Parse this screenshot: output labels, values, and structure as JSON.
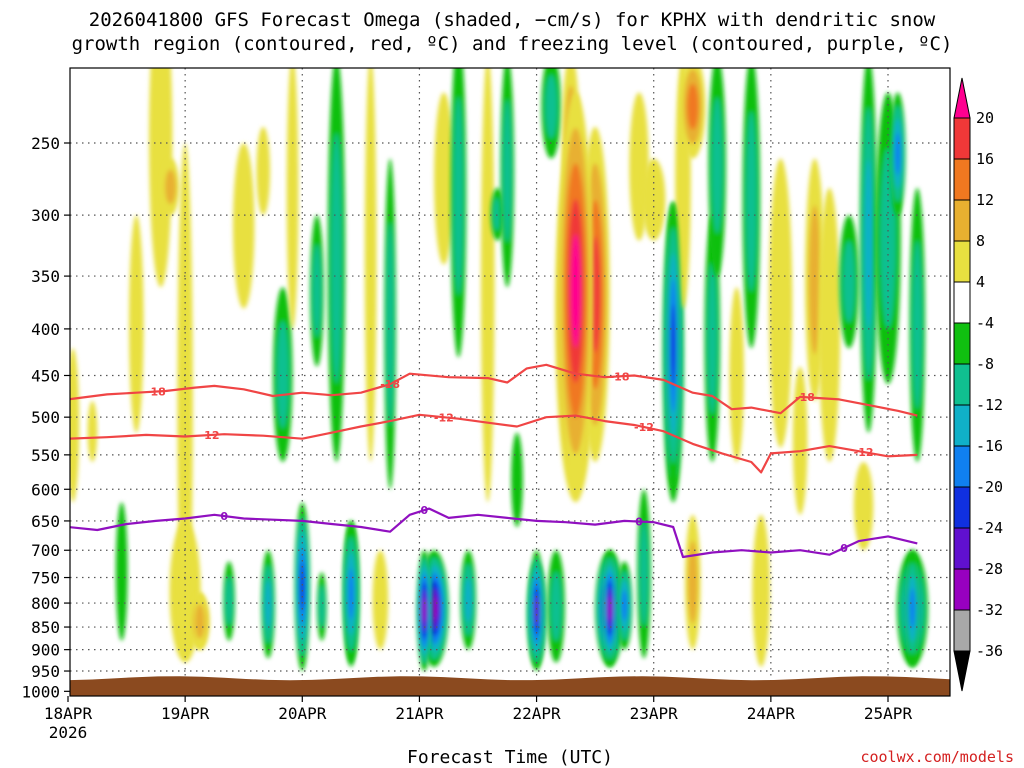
{
  "title": {
    "line1": "2026041800 GFS Forecast Omega (shaded, −cm/s) for KPHX with dendritic snow",
    "line2": "growth region (contoured, red, ºC) and freezing level (contoured, purple, ºC)"
  },
  "xlabel": "Forecast Time (UTC)",
  "credit": "coolwx.com/models",
  "colors": {
    "ground": "#8b4a1f",
    "dgz_contour": "#f04545",
    "freezing_contour": "#9010c0",
    "grid": "#555555"
  },
  "chart_data": {
    "type": "heatmap",
    "title": "2026041800 GFS Forecast Omega (shaded, −cm/s) for KPHX with dendritic snow growth region (contoured, red, ºC) and freezing level (contoured, purple, ºC)",
    "xlabel": "Forecast Time (UTC)",
    "ylabel": "",
    "x_unit": "forecast hour",
    "x_range": [
      0,
      174
    ],
    "y_unit": "hPa",
    "y_range": [
      1050,
      200
    ],
    "y_scale": "log-pressure",
    "x_ticks": [
      {
        "hour": 0,
        "label": "18APR",
        "sublabel": "2026"
      },
      {
        "hour": 24,
        "label": "19APR"
      },
      {
        "hour": 48,
        "label": "20APR"
      },
      {
        "hour": 72,
        "label": "21APR"
      },
      {
        "hour": 96,
        "label": "22APR"
      },
      {
        "hour": 120,
        "label": "23APR"
      },
      {
        "hour": 144,
        "label": "24APR"
      },
      {
        "hour": 168,
        "label": "25APR"
      }
    ],
    "y_ticks": [
      250,
      300,
      350,
      400,
      450,
      500,
      550,
      600,
      650,
      700,
      750,
      800,
      850,
      900,
      950,
      1000
    ],
    "colorbar": {
      "labels": [
        "20",
        "16",
        "12",
        "8",
        "4",
        "-4",
        "-8",
        "-12",
        "-16",
        "-20",
        "-24",
        "-28",
        "-32",
        "-36"
      ],
      "colors": [
        "#ff0090",
        "#f03838",
        "#f07820",
        "#e8b030",
        "#e8e040",
        "#ffffff",
        "#10c010",
        "#10c090",
        "#10b0c8",
        "#1080f0",
        "#1030e0",
        "#6010d0",
        "#9800c0",
        "#a8a8a8",
        "#000000"
      ]
    },
    "surface_pressure_hPa": 965,
    "dgz_contours": [
      {
        "label": "-18",
        "series": [
          {
            "hour": 0,
            "p": 478
          },
          {
            "hour": 4,
            "p": 475
          },
          {
            "hour": 8,
            "p": 472
          },
          {
            "hour": 14,
            "p": 470
          },
          {
            "hour": 20,
            "p": 468
          },
          {
            "hour": 26,
            "p": 464
          },
          {
            "hour": 30,
            "p": 462
          },
          {
            "hour": 36,
            "p": 466
          },
          {
            "hour": 42,
            "p": 474
          },
          {
            "hour": 48,
            "p": 470
          },
          {
            "hour": 54,
            "p": 473
          },
          {
            "hour": 60,
            "p": 470
          },
          {
            "hour": 66,
            "p": 460
          },
          {
            "hour": 70,
            "p": 448
          },
          {
            "hour": 78,
            "p": 452
          },
          {
            "hour": 86,
            "p": 453
          },
          {
            "hour": 90,
            "p": 458
          },
          {
            "hour": 94,
            "p": 442
          },
          {
            "hour": 98,
            "p": 438
          },
          {
            "hour": 104,
            "p": 448
          },
          {
            "hour": 110,
            "p": 452
          },
          {
            "hour": 116,
            "p": 450
          },
          {
            "hour": 122,
            "p": 455
          },
          {
            "hour": 128,
            "p": 470
          },
          {
            "hour": 132,
            "p": 474
          },
          {
            "hour": 136,
            "p": 490
          },
          {
            "hour": 140,
            "p": 488
          },
          {
            "hour": 146,
            "p": 495
          },
          {
            "hour": 150,
            "p": 475
          },
          {
            "hour": 158,
            "p": 478
          },
          {
            "hour": 164,
            "p": 485
          },
          {
            "hour": 170,
            "p": 492
          },
          {
            "hour": 174,
            "p": 498
          }
        ],
        "labels_at_hours": [
          18,
          66,
          113,
          151
        ]
      },
      {
        "label": "-12",
        "series": [
          {
            "hour": 0,
            "p": 528
          },
          {
            "hour": 8,
            "p": 526
          },
          {
            "hour": 16,
            "p": 523
          },
          {
            "hour": 24,
            "p": 525
          },
          {
            "hour": 32,
            "p": 522
          },
          {
            "hour": 40,
            "p": 524
          },
          {
            "hour": 48,
            "p": 528
          },
          {
            "hour": 54,
            "p": 520
          },
          {
            "hour": 60,
            "p": 512
          },
          {
            "hour": 66,
            "p": 505
          },
          {
            "hour": 72,
            "p": 497
          },
          {
            "hour": 80,
            "p": 502
          },
          {
            "hour": 86,
            "p": 507
          },
          {
            "hour": 92,
            "p": 512
          },
          {
            "hour": 98,
            "p": 500
          },
          {
            "hour": 104,
            "p": 498
          },
          {
            "hour": 110,
            "p": 505
          },
          {
            "hour": 116,
            "p": 510
          },
          {
            "hour": 122,
            "p": 518
          },
          {
            "hour": 128,
            "p": 535
          },
          {
            "hour": 134,
            "p": 548
          },
          {
            "hour": 140,
            "p": 560
          },
          {
            "hour": 142,
            "p": 575
          },
          {
            "hour": 144,
            "p": 548
          },
          {
            "hour": 150,
            "p": 545
          },
          {
            "hour": 156,
            "p": 538
          },
          {
            "hour": 162,
            "p": 545
          },
          {
            "hour": 168,
            "p": 552
          },
          {
            "hour": 174,
            "p": 550
          }
        ],
        "labels_at_hours": [
          29,
          77,
          118,
          163
        ]
      }
    ],
    "freezing_contour": {
      "label": "0",
      "series": [
        {
          "hour": 0,
          "p": 660
        },
        {
          "hour": 6,
          "p": 665
        },
        {
          "hour": 12,
          "p": 655
        },
        {
          "hour": 18,
          "p": 650
        },
        {
          "hour": 24,
          "p": 646
        },
        {
          "hour": 30,
          "p": 640
        },
        {
          "hour": 36,
          "p": 646
        },
        {
          "hour": 42,
          "p": 648
        },
        {
          "hour": 48,
          "p": 650
        },
        {
          "hour": 54,
          "p": 655
        },
        {
          "hour": 60,
          "p": 660
        },
        {
          "hour": 66,
          "p": 668
        },
        {
          "hour": 70,
          "p": 640
        },
        {
          "hour": 74,
          "p": 630
        },
        {
          "hour": 78,
          "p": 645
        },
        {
          "hour": 84,
          "p": 640
        },
        {
          "hour": 90,
          "p": 645
        },
        {
          "hour": 96,
          "p": 650
        },
        {
          "hour": 102,
          "p": 652
        },
        {
          "hour": 108,
          "p": 656
        },
        {
          "hour": 114,
          "p": 650
        },
        {
          "hour": 120,
          "p": 652
        },
        {
          "hour": 124,
          "p": 660
        },
        {
          "hour": 126,
          "p": 712
        },
        {
          "hour": 132,
          "p": 704
        },
        {
          "hour": 138,
          "p": 700
        },
        {
          "hour": 144,
          "p": 704
        },
        {
          "hour": 150,
          "p": 700
        },
        {
          "hour": 156,
          "p": 708
        },
        {
          "hour": 162,
          "p": 684
        },
        {
          "hour": 168,
          "p": 676
        },
        {
          "hour": 174,
          "p": 688
        }
      ],
      "labels_at_hours": [
        32,
        73,
        117,
        159
      ]
    },
    "omega_features": [
      {
        "hour": 24,
        "p_top": 250,
        "p_bot": 920,
        "value": 4,
        "note": "weak ascent column"
      },
      {
        "hour": 27,
        "p_top": 780,
        "p_bot": 900,
        "value": 8,
        "note": "low-level ascent"
      },
      {
        "hour": 48,
        "p_top": 620,
        "p_bot": 950,
        "value": -20,
        "note": "narrow descent core"
      },
      {
        "hour": 58,
        "p_top": 650,
        "p_bot": 940,
        "value": -16
      },
      {
        "hour": 73,
        "p_top": 700,
        "p_bot": 950,
        "value": -28,
        "note": "strong subsidence"
      },
      {
        "hour": 96,
        "p_top": 700,
        "p_bot": 950,
        "value": -24
      },
      {
        "hour": 104,
        "p_top": 220,
        "p_bot": 600,
        "value": 20,
        "note": "strong upper ascent"
      },
      {
        "hour": 111,
        "p_top": 700,
        "p_bot": 940,
        "value": -28
      },
      {
        "hour": 124,
        "p_top": 290,
        "p_bot": 600,
        "value": -20
      },
      {
        "hour": 173,
        "p_top": 700,
        "p_bot": 940,
        "value": -16
      }
    ]
  }
}
